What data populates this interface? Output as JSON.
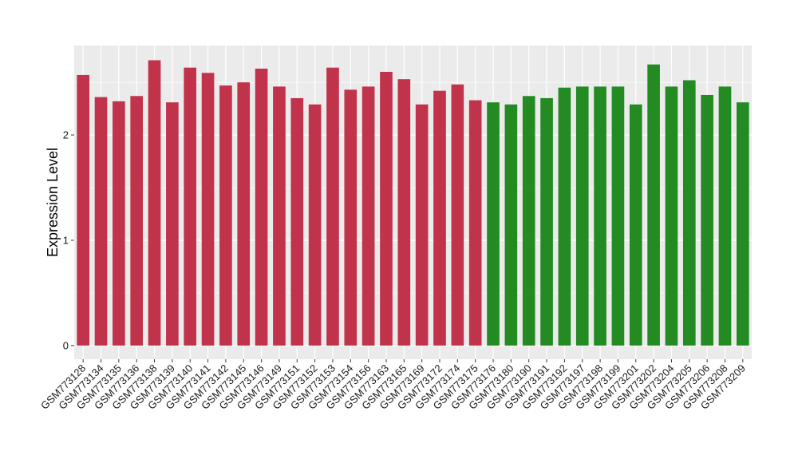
{
  "chart_data": {
    "type": "bar",
    "title": "",
    "xlabel": "",
    "ylabel": "Expression Level",
    "ylim": [
      -0.13,
      2.85
    ],
    "yticks": [
      0,
      1,
      2
    ],
    "grid": true,
    "legend": "none",
    "colors": {
      "group1": "#c0334a",
      "group2": "#238b22",
      "panel": "#ebebeb",
      "gridline": "#ffffff"
    },
    "categories": [
      "GSM773128",
      "GSM773134",
      "GSM773135",
      "GSM773136",
      "GSM773138",
      "GSM773139",
      "GSM773140",
      "GSM773141",
      "GSM773142",
      "GSM773145",
      "GSM773146",
      "GSM773149",
      "GSM773151",
      "GSM773152",
      "GSM773153",
      "GSM773154",
      "GSM773156",
      "GSM773163",
      "GSM773165",
      "GSM773169",
      "GSM773172",
      "GSM773174",
      "GSM773175",
      "GSM773176",
      "GSM773180",
      "GSM773190",
      "GSM773191",
      "GSM773192",
      "GSM773197",
      "GSM773198",
      "GSM773199",
      "GSM773201",
      "GSM773202",
      "GSM773204",
      "GSM773205",
      "GSM773206",
      "GSM773208",
      "GSM773209"
    ],
    "values": [
      2.57,
      2.36,
      2.32,
      2.37,
      2.71,
      2.31,
      2.64,
      2.59,
      2.47,
      2.5,
      2.63,
      2.46,
      2.35,
      2.29,
      2.64,
      2.43,
      2.46,
      2.6,
      2.53,
      2.29,
      2.42,
      2.48,
      2.33,
      2.31,
      2.29,
      2.37,
      2.35,
      2.45,
      2.46,
      2.46,
      2.46,
      2.29,
      2.67,
      2.46,
      2.52,
      2.38,
      2.46,
      2.31
    ],
    "groups": [
      1,
      1,
      1,
      1,
      1,
      1,
      1,
      1,
      1,
      1,
      1,
      1,
      1,
      1,
      1,
      1,
      1,
      1,
      1,
      1,
      1,
      1,
      1,
      2,
      2,
      2,
      2,
      2,
      2,
      2,
      2,
      2,
      2,
      2,
      2,
      2,
      2,
      2
    ]
  }
}
